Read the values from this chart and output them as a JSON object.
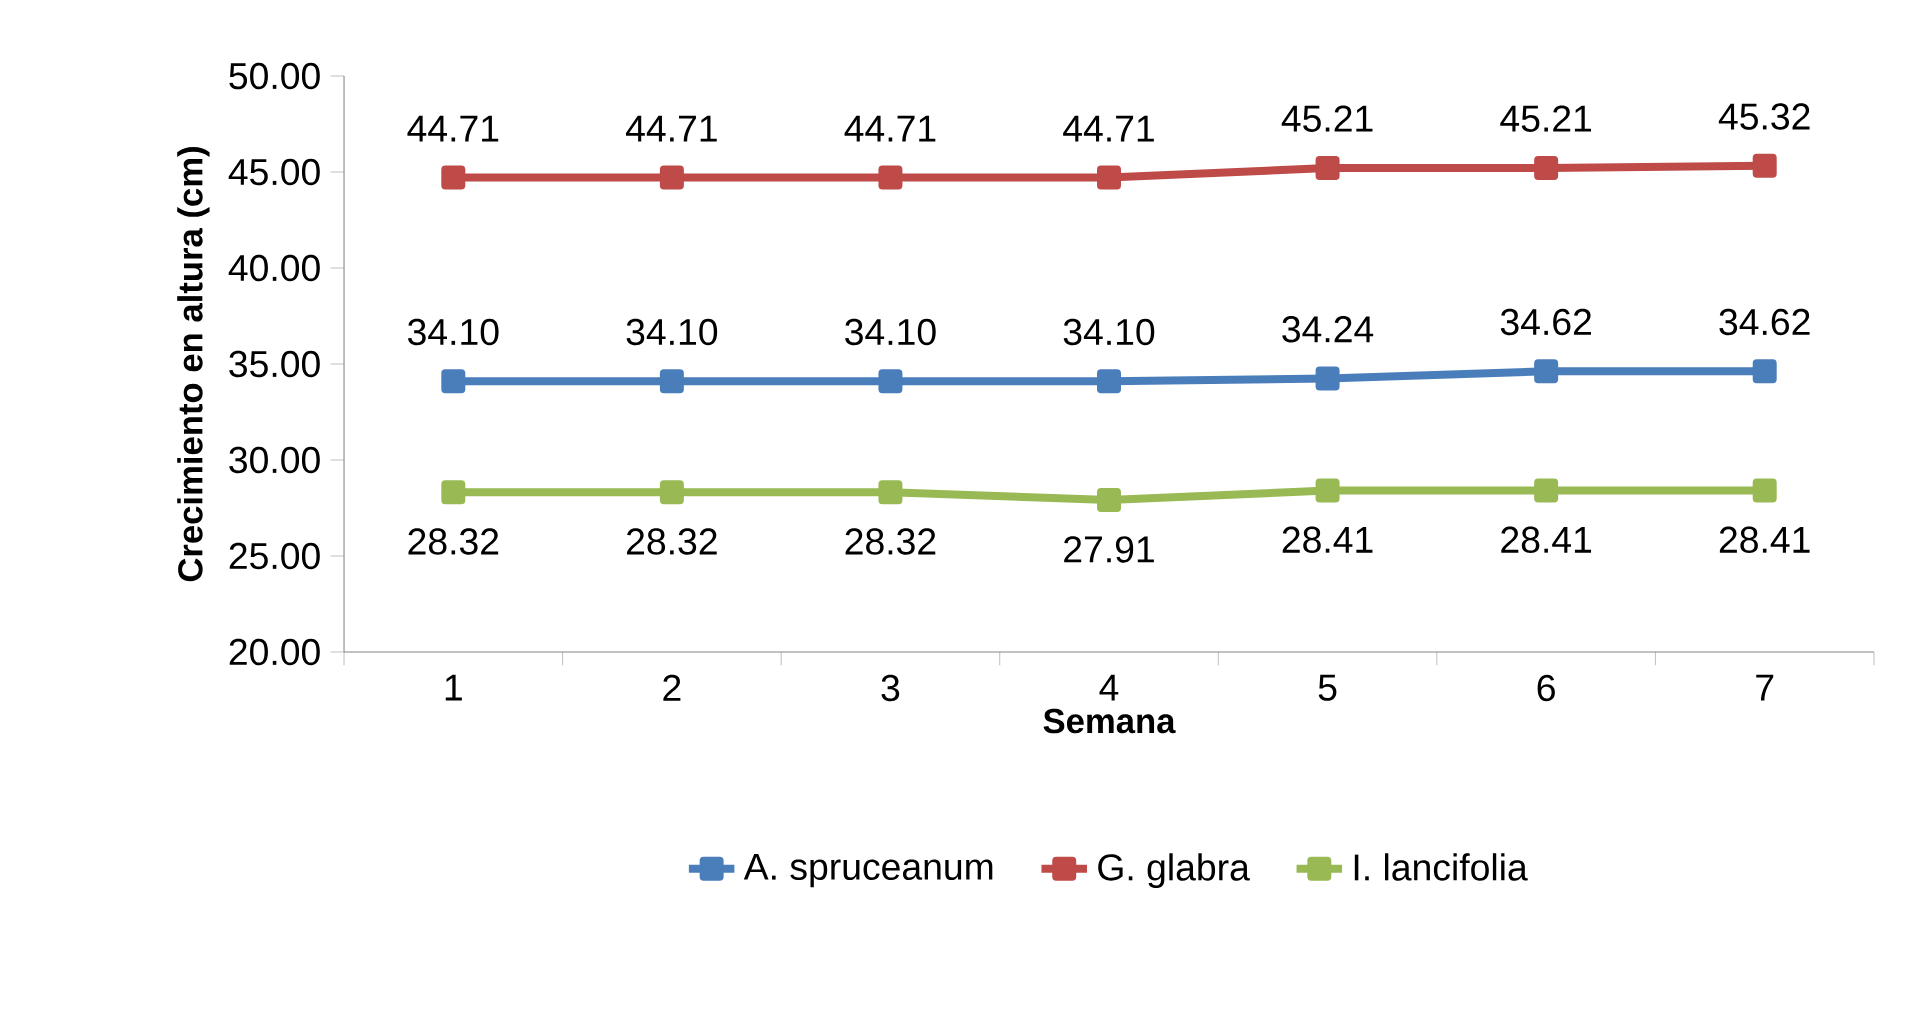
{
  "chart_data": {
    "type": "line",
    "xlabel": "Semana",
    "ylabel": "Crecimiento en altura (cm)",
    "categories": [
      "1",
      "2",
      "3",
      "4",
      "5",
      "6",
      "7"
    ],
    "ylim": [
      20,
      50
    ],
    "yticks": [
      {
        "value": 20,
        "label": "20.00"
      },
      {
        "value": 25,
        "label": "25.00"
      },
      {
        "value": 30,
        "label": "30.00"
      },
      {
        "value": 35,
        "label": "35.00"
      },
      {
        "value": 40,
        "label": "40.00"
      },
      {
        "value": 45,
        "label": "45.00"
      },
      {
        "value": 50,
        "label": "50.00"
      }
    ],
    "series": [
      {
        "name": "A. spruceanum",
        "color": "#4a7ebb",
        "values": [
          34.1,
          34.1,
          34.1,
          34.1,
          34.24,
          34.62,
          34.62
        ],
        "value_labels": [
          "34.10",
          "34.10",
          "34.10",
          "34.10",
          "34.24",
          "34.62",
          "34.62"
        ]
      },
      {
        "name": "G. glabra",
        "color": "#be4b48",
        "values": [
          44.71,
          44.71,
          44.71,
          44.71,
          45.21,
          45.21,
          45.32
        ],
        "value_labels": [
          "44.71",
          "44.71",
          "44.71",
          "44.71",
          "45.21",
          "45.21",
          "45.32"
        ]
      },
      {
        "name": "I. lancifolia",
        "color": "#98b954",
        "values": [
          28.32,
          28.32,
          28.32,
          27.91,
          28.41,
          28.41,
          28.41
        ],
        "value_labels": [
          "28.32",
          "28.32",
          "28.32",
          "27.91",
          "28.41",
          "28.41",
          "28.41"
        ]
      }
    ],
    "grid": false,
    "legend": "bottom",
    "marker": "square",
    "line_style": "solid"
  }
}
